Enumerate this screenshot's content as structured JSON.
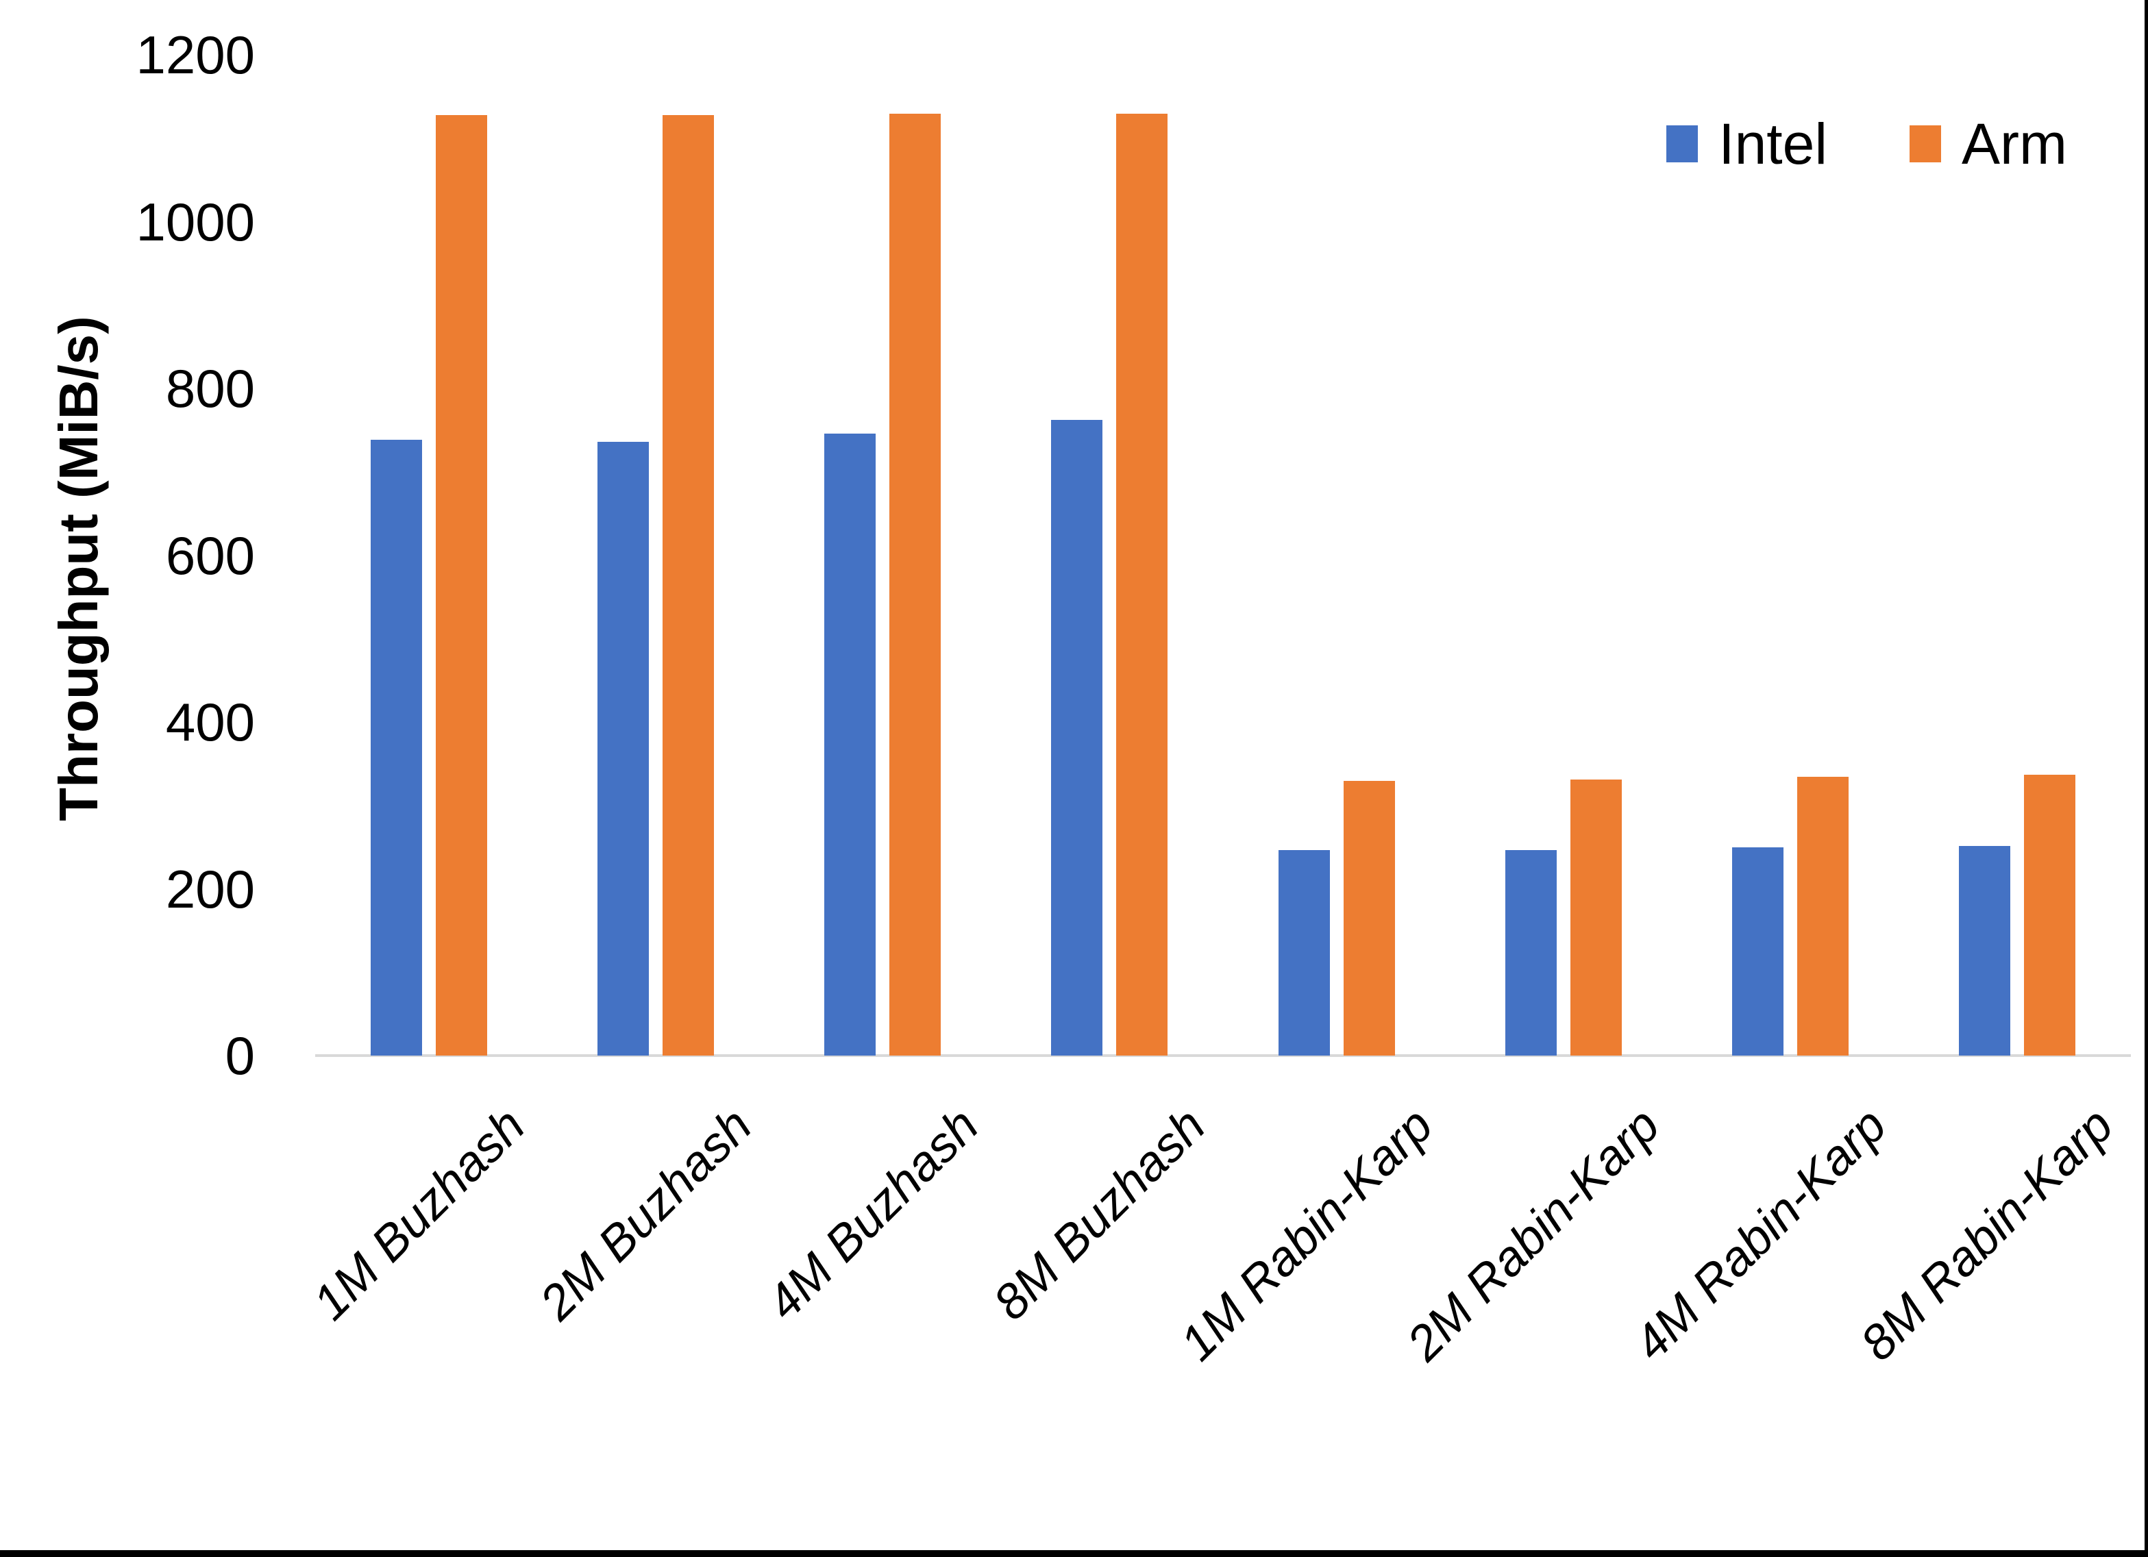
{
  "chart_data": {
    "type": "bar",
    "title": "",
    "xlabel": "",
    "ylabel": "Throughput (MiB/s)",
    "categories": [
      "1M Buzhash",
      "2M Buzhash",
      "4M Buzhash",
      "8M Buzhash",
      "1M Rabin-Karp",
      "2M Rabin-Karp",
      "4M Rabin-Karp",
      "8M Rabin-Karp"
    ],
    "series": [
      {
        "name": "Intel",
        "color": "#4472C4",
        "values": [
          738,
          736,
          746,
          762,
          246,
          246,
          250,
          251
        ]
      },
      {
        "name": "Arm",
        "color": "#ED7D31",
        "values": [
          1128,
          1128,
          1129,
          1129,
          329,
          331,
          334,
          337
        ]
      }
    ],
    "ylim": [
      0,
      1200
    ],
    "yticks": [
      0,
      200,
      400,
      600,
      800,
      1000,
      1200
    ],
    "grid": false,
    "legend_position": "top-right",
    "x_label_rotation_deg": 45,
    "axis_line_color": "#D9D9D9",
    "text_color": "#000000"
  },
  "page": {
    "border_color": "#000000"
  }
}
